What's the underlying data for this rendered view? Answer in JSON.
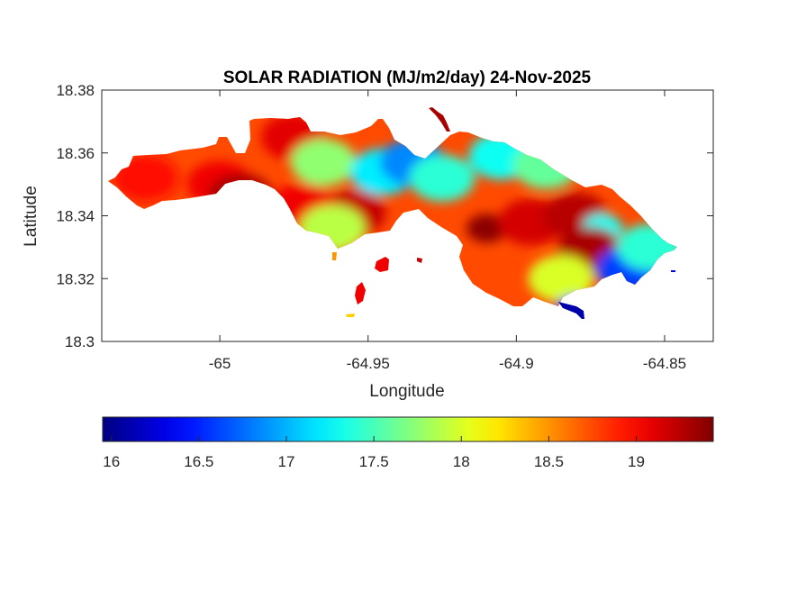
{
  "chart_data": {
    "type": "heatmap",
    "title": "SOLAR RADIATION (MJ/m2/day) 24-Nov-2025",
    "xlabel": "Longitude",
    "ylabel": "Latitude",
    "xlim": [
      -65.0398,
      -64.8336
    ],
    "ylim": [
      18.3,
      18.38
    ],
    "xticks": [
      -65,
      -64.95,
      -64.9,
      -64.85
    ],
    "xtick_labels": [
      "-65",
      "-64.95",
      "-64.9",
      "-64.85"
    ],
    "yticks": [
      18.38,
      18.36,
      18.34,
      18.32,
      18.3
    ],
    "ytick_labels": [
      "18.38",
      "18.36",
      "18.34",
      "18.32",
      "18.3"
    ],
    "grid": false,
    "colormap": "jet",
    "colorbar": {
      "location": "bottom",
      "clim": [
        15.95,
        19.44
      ],
      "ticks": [
        16,
        16.5,
        17,
        17.5,
        18,
        18.5,
        19
      ],
      "tick_labels": [
        "16",
        "16.5",
        "17",
        "17.5",
        "18",
        "18.5",
        "19"
      ]
    },
    "base_value": 18.75,
    "regions": [
      {
        "name": "west-end",
        "lon": -65.025,
        "lat": 18.352,
        "value": 18.95
      },
      {
        "name": "west-central",
        "lon": -65.0,
        "lat": 18.35,
        "value": 19.05
      },
      {
        "name": "west-peak",
        "lon": -64.993,
        "lat": 18.346,
        "value": 19.3
      },
      {
        "name": "northwest-ridge",
        "lon": -64.975,
        "lat": 18.365,
        "value": 19.1
      },
      {
        "name": "central-north-green",
        "lon": -64.965,
        "lat": 18.357,
        "value": 17.75
      },
      {
        "name": "central-cyan",
        "lon": -64.945,
        "lat": 18.354,
        "value": 17.2
      },
      {
        "name": "central-blue",
        "lon": -64.935,
        "lat": 18.357,
        "value": 16.85
      },
      {
        "name": "north-cove-cyan",
        "lon": -64.925,
        "lat": 18.352,
        "value": 17.4
      },
      {
        "name": "east-north-cyan",
        "lon": -64.905,
        "lat": 18.359,
        "value": 17.3
      },
      {
        "name": "east-north-green",
        "lon": -64.89,
        "lat": 18.356,
        "value": 17.6
      },
      {
        "name": "central-south-red",
        "lon": -64.955,
        "lat": 18.341,
        "value": 19.2
      },
      {
        "name": "central-south-red-2",
        "lon": -64.972,
        "lat": 18.343,
        "value": 19.05
      },
      {
        "name": "central-south-green",
        "lon": -64.962,
        "lat": 18.336,
        "value": 17.9
      },
      {
        "name": "east-dark-core",
        "lon": -64.91,
        "lat": 18.336,
        "value": 19.4
      },
      {
        "name": "east-red-band",
        "lon": -64.895,
        "lat": 18.338,
        "value": 19.15
      },
      {
        "name": "east-red-2",
        "lon": -64.88,
        "lat": 18.34,
        "value": 19.25
      },
      {
        "name": "east-cyan-spot",
        "lon": -64.871,
        "lat": 18.336,
        "value": 17.3
      },
      {
        "name": "east-red-3",
        "lon": -64.875,
        "lat": 18.329,
        "value": 19.3
      },
      {
        "name": "southeast-yellow",
        "lon": -64.885,
        "lat": 18.32,
        "value": 18.0
      },
      {
        "name": "southeast-blue-point",
        "lon": -64.88,
        "lat": 18.31,
        "value": 16.5
      },
      {
        "name": "east-tip-blue",
        "lon": -64.862,
        "lat": 18.323,
        "value": 16.6
      },
      {
        "name": "east-tip-cyan",
        "lon": -64.855,
        "lat": 18.33,
        "value": 17.4
      },
      {
        "name": "south-islet",
        "lon": -64.948,
        "lat": 18.325,
        "value": 19.0
      },
      {
        "name": "southwest-islet",
        "lon": -64.953,
        "lat": 18.318,
        "value": 19.0
      }
    ]
  }
}
